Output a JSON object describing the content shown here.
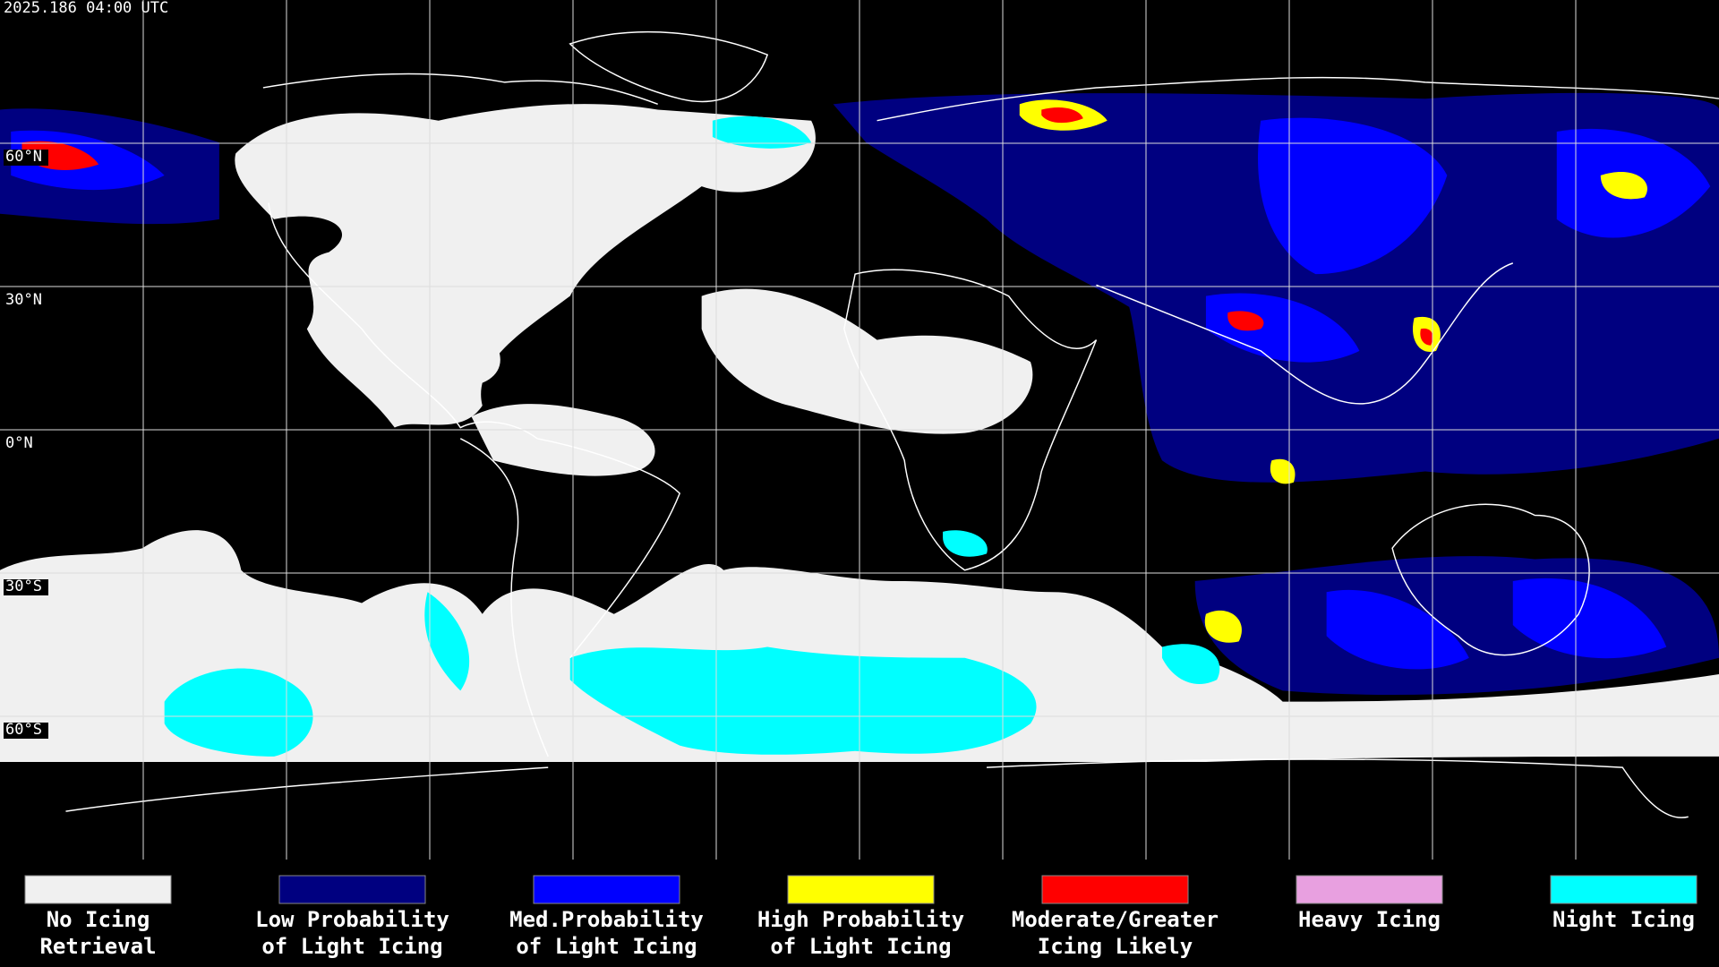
{
  "header": {
    "timestamp": "2025.186 04:00 UTC"
  },
  "latitude_labels": [
    "60°N",
    "30°N",
    "0°N",
    "30°S",
    "60°S"
  ],
  "legend": [
    {
      "lines": [
        "No Icing",
        "Retrieval"
      ],
      "color": "#f0f0f0"
    },
    {
      "lines": [
        "Low Probability",
        "of Light Icing"
      ],
      "color": "#000080"
    },
    {
      "lines": [
        "Med.Probability",
        "of Light Icing"
      ],
      "color": "#0000ff"
    },
    {
      "lines": [
        "High Probability",
        "of Light Icing"
      ],
      "color": "#ffff00"
    },
    {
      "lines": [
        "Moderate/Greater",
        "Icing Likely"
      ],
      "color": "#ff0000"
    },
    {
      "lines": [
        "Heavy Icing"
      ],
      "color": "#e8a0e0"
    },
    {
      "lines": [
        "Night Icing"
      ],
      "color": "#00ffff"
    }
  ]
}
